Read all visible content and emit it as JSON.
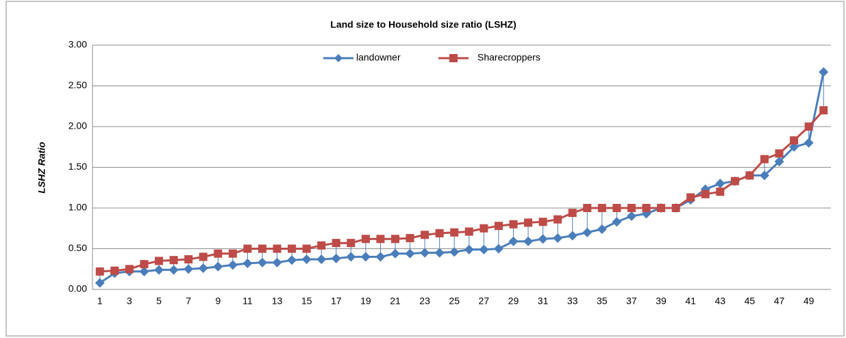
{
  "chart_data": {
    "type": "line",
    "title": "Land size to Household size ratio (LSHZ)",
    "y_label": "LSHZ Ratio",
    "categories": [
      1,
      null,
      3,
      null,
      5,
      null,
      7,
      null,
      9,
      null,
      11,
      null,
      13,
      null,
      15,
      null,
      17,
      null,
      19,
      null,
      21,
      null,
      23,
      null,
      25,
      null,
      27,
      null,
      29,
      null,
      31,
      null,
      33,
      null,
      35,
      null,
      37,
      null,
      39,
      null,
      41,
      null,
      43,
      null,
      45,
      null,
      47,
      null,
      49,
      null
    ],
    "series": [
      {
        "name": "landowner",
        "color": "#4a7ebb",
        "values": [
          0.08,
          0.2,
          0.22,
          0.22,
          0.24,
          0.24,
          0.25,
          0.26,
          0.28,
          0.3,
          0.32,
          0.33,
          0.33,
          0.36,
          0.37,
          0.37,
          0.38,
          0.4,
          0.4,
          0.4,
          0.44,
          0.44,
          0.45,
          0.45,
          0.46,
          0.49,
          0.49,
          0.5,
          0.59,
          0.59,
          0.62,
          0.63,
          0.66,
          0.7,
          0.74,
          0.83,
          0.9,
          0.93,
          1.0,
          1.0,
          1.1,
          1.23,
          1.3,
          1.33,
          1.4,
          1.4,
          1.57,
          1.75,
          1.8,
          2.67
        ]
      },
      {
        "name": "Sharecroppers",
        "color": "#be4b48",
        "values": [
          0.22,
          0.23,
          0.25,
          0.31,
          0.35,
          0.36,
          0.37,
          0.4,
          0.44,
          0.44,
          0.5,
          0.5,
          0.5,
          0.5,
          0.5,
          0.54,
          0.57,
          0.57,
          0.62,
          0.62,
          0.62,
          0.63,
          0.67,
          0.69,
          0.7,
          0.71,
          0.75,
          0.78,
          0.8,
          0.82,
          0.83,
          0.86,
          0.94,
          1.0,
          1.0,
          1.0,
          1.0,
          1.0,
          1.0,
          1.0,
          1.13,
          1.17,
          1.2,
          1.33,
          1.4,
          1.6,
          1.67,
          1.83,
          2.0,
          2.2
        ]
      }
    ],
    "ylim": [
      0,
      3
    ],
    "yticks": [
      {
        "value": 0,
        "label": "0.00"
      },
      {
        "value": 0.5,
        "label": "0.50"
      },
      {
        "value": 1,
        "label": "1.00"
      },
      {
        "value": 1.5,
        "label": "1.50"
      },
      {
        "value": 2,
        "label": "2.00"
      },
      {
        "value": 2.5,
        "label": "2.50"
      },
      {
        "value": 3,
        "label": "3.00"
      }
    ],
    "grid": true,
    "legend": "top"
  }
}
